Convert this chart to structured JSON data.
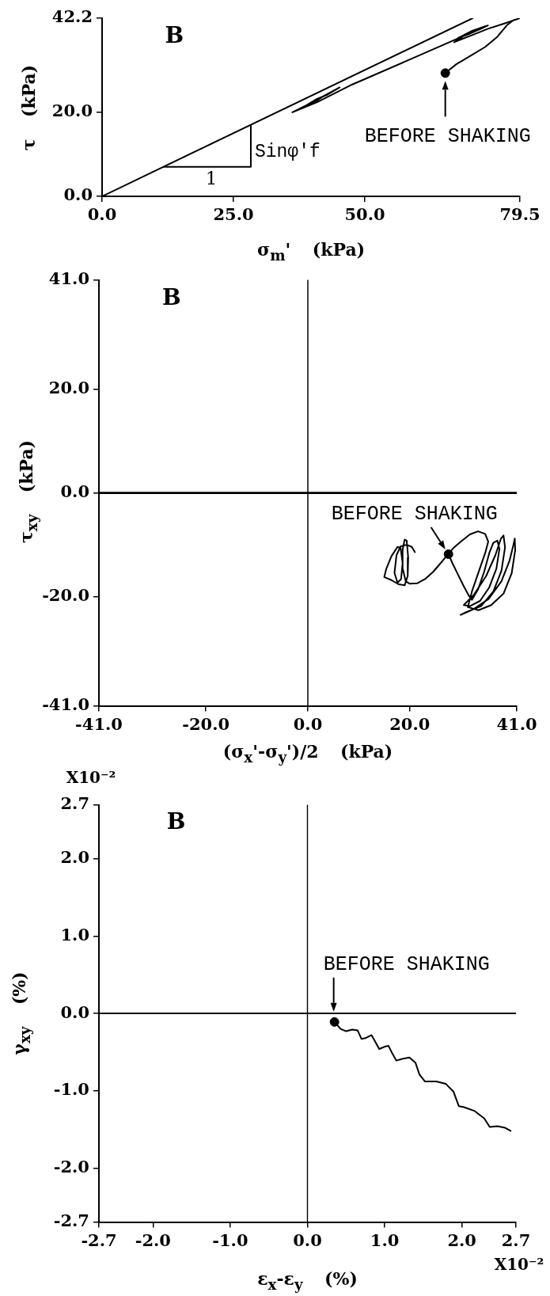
{
  "chart_data": [
    {
      "type": "line",
      "xlabel": "σ$_{m}$' (kPa)",
      "ylabel": "τ (kPa)",
      "xlim": [
        0,
        79.5
      ],
      "ylim": [
        0,
        42.2
      ],
      "xticks": [
        {
          "value": 0,
          "label": "0.0"
        },
        {
          "value": 25,
          "label": "25.0"
        },
        {
          "value": 50,
          "label": "50.0"
        },
        79.5
      ],
      "yticks": [
        {
          "value": 0,
          "label": "0.0"
        },
        {
          "value": 20,
          "label": "20.0"
        },
        42.2
      ],
      "series": [
        {
          "type": "line",
          "color": "#000000",
          "x": [
            0,
            70.5
          ],
          "values": [
            0,
            42.2
          ]
        },
        {
          "type": "line",
          "color": "#000000",
          "x": [
            11.7,
            28.3,
            28.3
          ],
          "values": [
            7.0,
            7.0,
            16.9
          ]
        },
        {
          "type": "line",
          "color": "#000000",
          "x": [
            65.3,
            67.4,
            70.0,
            72.9,
            75.2,
            77.0,
            78.2,
            79.5,
            76.4,
            73.4,
            70.4,
            67.7,
            67.0,
            69.0,
            71.7,
            73.4,
            72.4,
            69.7,
            67.7,
            70.4,
            72.9,
            66.4,
            57.6,
            47.6,
            40.9,
            36.2,
            38.9,
            40.9,
            42.9,
            45.2,
            42.2,
            40.9,
            37.5,
            38.9,
            40.9,
            42.2
          ],
          "values": [
            29.2,
            31.3,
            33.2,
            35.4,
            37.8,
            40.5,
            41.7,
            42.2,
            40.9,
            39.7,
            38.2,
            36.9,
            36.5,
            38.2,
            39.7,
            40.5,
            39.9,
            38.4,
            37.5,
            39.2,
            40.3,
            36.7,
            31.9,
            26.5,
            22.3,
            19.9,
            21.6,
            23.1,
            24.1,
            25.8,
            23.8,
            22.7,
            20.6,
            21.6,
            22.7,
            23.8
          ]
        },
        {
          "type": "scatter",
          "color": "#000000",
          "marker": "circle",
          "x": [
            65.3
          ],
          "values": [
            29.2
          ]
        }
      ],
      "annotations": [
        "B",
        {
          "text": "BEFORE SHAKING",
          "x": 65.3,
          "y": 29.2
        },
        {
          "text": "Sinφ'f",
          "x": 28.3,
          "y": 10.6
        },
        {
          "text": "1",
          "x": 20.8,
          "y": 7.0
        }
      ]
    },
    {
      "type": "line",
      "xlabel": "(σ$_{x}$'-σ$_{y}$')/2 (kPa)",
      "ylabel": "τ$_{xy}$ (kPa)",
      "xlim": [
        -41,
        41
      ],
      "ylim": [
        -41,
        41
      ],
      "xticks": [
        {
          "value": -41,
          "label": "-41.0"
        },
        {
          "value": -20,
          "label": "-20.0"
        },
        {
          "value": 0,
          "label": "0.0"
        },
        {
          "value": 20,
          "label": "20.0"
        },
        {
          "value": 41,
          "label": "41.0"
        }
      ],
      "yticks": [
        {
          "value": -41,
          "label": "-41.0"
        },
        {
          "value": -20,
          "label": "-20.0"
        },
        {
          "value": 0,
          "label": "0.0"
        },
        {
          "value": 20,
          "label": "20.0"
        },
        {
          "value": 41,
          "label": "41.0"
        }
      ],
      "ref_lines": [
        {
          "axis": "y",
          "value": 0
        },
        {
          "axis": "x",
          "value": 0
        }
      ],
      "series": [
        {
          "type": "line",
          "color": "#000000",
          "x": [
            27.6,
            28.4,
            29.4,
            30.5,
            31.6,
            32.2,
            33.4,
            34.6,
            35.6,
            36.4,
            37.2,
            37.6,
            37.0,
            35.6,
            33.8,
            31.8,
            30.6,
            32.6,
            35.0,
            36.8,
            37.9,
            38.4,
            38.7,
            38.0,
            36.4,
            34.0,
            31.0,
            30.0,
            32.5,
            35.5,
            38.0,
            39.6,
            40.4,
            40.6,
            40.7,
            40.0,
            38.4,
            36.0,
            33.5,
            31.4,
            32.2,
            33.6,
            34.8,
            35.4,
            34.8,
            33.4,
            31.8,
            30.0,
            28.6,
            27.4,
            26.0,
            24.6,
            23.0,
            21.5,
            20.0,
            19.2,
            18.6,
            18.6,
            19.0,
            19.4,
            19.7,
            19.6,
            19.0,
            17.8,
            16.4,
            15.0,
            15.4,
            16.4,
            17.6,
            18.2,
            18.6,
            18.3,
            17.6,
            17.0,
            17.4,
            18.2,
            19.4,
            20.4,
            21.0
          ],
          "values": [
            -11.8,
            -13.6,
            -15.6,
            -17.8,
            -19.8,
            -20.6,
            -18.6,
            -15.2,
            -11.6,
            -9.6,
            -9.2,
            -10.8,
            -14.6,
            -18.2,
            -20.8,
            -21.8,
            -21.6,
            -19.6,
            -16.0,
            -12.0,
            -8.8,
            -8.2,
            -10.5,
            -15.0,
            -19.0,
            -21.8,
            -23.0,
            -23.5,
            -22.4,
            -20.4,
            -17.0,
            -13.0,
            -9.8,
            -8.8,
            -11.0,
            -15.5,
            -19.4,
            -21.6,
            -22.6,
            -22.0,
            -19.0,
            -15.0,
            -11.6,
            -9.4,
            -7.9,
            -7.4,
            -8.0,
            -9.4,
            -10.6,
            -11.9,
            -13.6,
            -15.2,
            -16.6,
            -17.4,
            -17.5,
            -17.0,
            -14.5,
            -11.0,
            -9.0,
            -9.2,
            -12.5,
            -16.0,
            -17.8,
            -17.6,
            -16.8,
            -16.2,
            -14.6,
            -12.2,
            -10.4,
            -10.6,
            -13.5,
            -16.6,
            -17.3,
            -15.4,
            -12.0,
            -10.3,
            -10.0,
            -10.4,
            -11.4
          ]
        },
        {
          "type": "scatter",
          "color": "#000000",
          "marker": "circle",
          "x": [
            27.6
          ],
          "values": [
            -11.8
          ]
        }
      ],
      "annotations": [
        "B",
        {
          "text": "BEFORE SHAKING",
          "x": 27.6,
          "y": -11.8
        }
      ]
    },
    {
      "type": "line",
      "xlabel": "ε$_{x}$-ε$_{y}$ (%)",
      "ylabel": "γ$_{xy}$ (%)",
      "xlim": [
        -2.7,
        2.7
      ],
      "ylim": [
        -2.7,
        2.7
      ],
      "xticks": [
        -2.7,
        {
          "value": -2,
          "label": "-2.0"
        },
        {
          "value": -1,
          "label": "-1.0"
        },
        {
          "value": 0,
          "label": "0.0"
        },
        {
          "value": 1,
          "label": "1.0"
        },
        {
          "value": 2,
          "label": "2.0"
        },
        2.7
      ],
      "yticks": [
        -2.7,
        {
          "value": -2,
          "label": "-2.0"
        },
        {
          "value": -1,
          "label": "-1.0"
        },
        {
          "value": 0,
          "label": "0.0"
        },
        {
          "value": 1,
          "label": "1.0"
        },
        {
          "value": 2,
          "label": "2.0"
        },
        2.7
      ],
      "ref_lines": [
        {
          "axis": "y",
          "value": 0
        },
        {
          "axis": "x",
          "value": 0
        }
      ],
      "series": [
        {
          "type": "line",
          "color": "#000000",
          "x": [
            0.35,
            0.43,
            0.5,
            0.58,
            0.65,
            0.7,
            0.75,
            0.83,
            0.88,
            0.93,
            1.0,
            1.05,
            1.1,
            1.15,
            1.22,
            1.32,
            1.4,
            1.45,
            1.52,
            1.67,
            1.79,
            1.89,
            1.96,
            2.02,
            2.16,
            2.29,
            2.36,
            2.46,
            2.56,
            2.63
          ],
          "values": [
            -0.11,
            -0.2,
            -0.23,
            -0.21,
            -0.22,
            -0.33,
            -0.32,
            -0.28,
            -0.37,
            -0.46,
            -0.43,
            -0.42,
            -0.52,
            -0.61,
            -0.59,
            -0.57,
            -0.64,
            -0.79,
            -0.88,
            -0.88,
            -0.91,
            -1.01,
            -1.2,
            -1.21,
            -1.26,
            -1.36,
            -1.47,
            -1.46,
            -1.48,
            -1.52
          ]
        },
        {
          "type": "scatter",
          "color": "#000000",
          "marker": "circle",
          "x": [
            0.35
          ],
          "values": [
            -0.11
          ]
        }
      ],
      "annotations": [
        "B",
        {
          "text": "BEFORE SHAKING",
          "x": 0.35,
          "y": -0.11
        },
        "X10⁻²",
        "X10⁻²"
      ]
    }
  ]
}
